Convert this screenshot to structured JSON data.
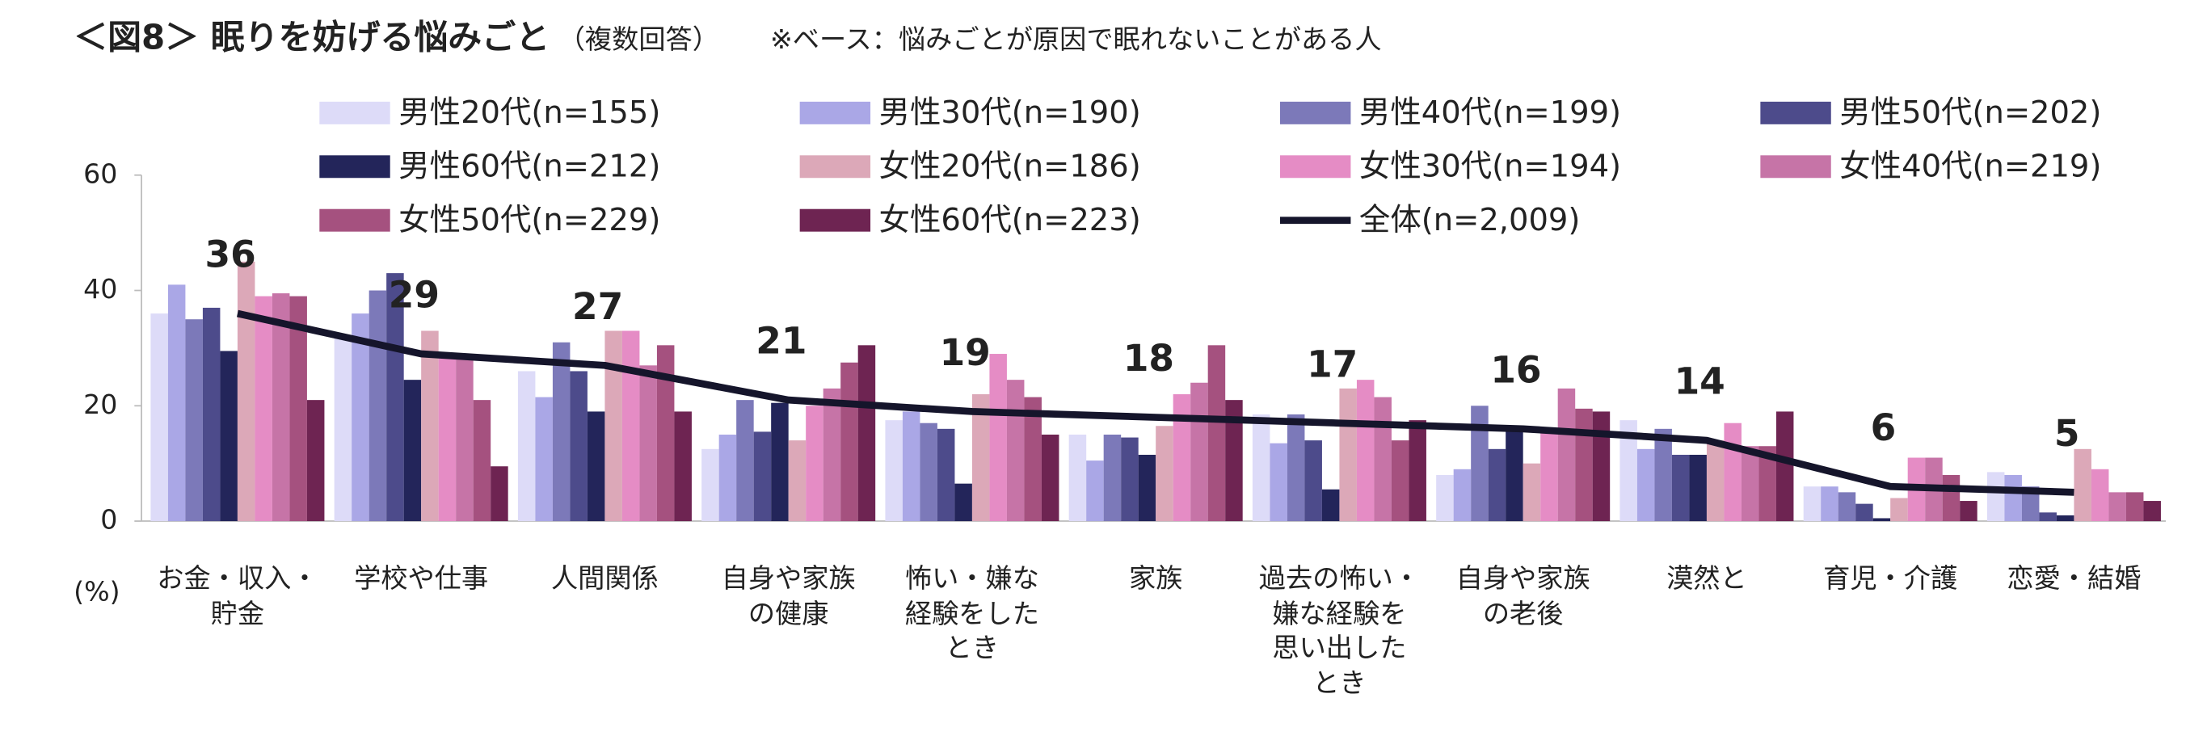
{
  "chart_data": {
    "type": "bar",
    "title": "＜図8＞ 眠りを妨げる悩みごと",
    "subtitle": "（複数回答）",
    "note": "※ベース：悩みごとが原因で眠れないことがある人",
    "y_label": "(%)",
    "categories": [
      "お金・収入・\n貯金",
      "学校や仕事",
      "人間関係",
      "自身や家族\nの健康",
      "怖い・嫌な\n経験をした\nとき",
      "家族",
      "過去の怖い・\n嫌な経験を\n思い出した\nとき",
      "自身や家族\nの老後",
      "漠然と",
      "育児・介護",
      "恋愛・結婚"
    ],
    "ylim": [
      0,
      60
    ],
    "yticks": [
      0,
      20,
      40,
      60
    ],
    "series": [
      {
        "name": "男性20代(n=155)",
        "color": "#dddbf8",
        "values": [
          36,
          32,
          26,
          12.5,
          17.5,
          15,
          18.5,
          8,
          17.5,
          6,
          8.5
        ]
      },
      {
        "name": "男性30代(n=190)",
        "color": "#aaa7e6",
        "values": [
          41,
          36,
          21.5,
          15,
          19,
          10.5,
          13.5,
          9,
          12.5,
          6,
          8
        ]
      },
      {
        "name": "男性40代(n=199)",
        "color": "#7c79b9",
        "values": [
          35,
          40,
          31,
          21,
          17,
          15,
          18.5,
          20,
          16,
          5,
          6
        ]
      },
      {
        "name": "男性50代(n=202)",
        "color": "#4d4b8b",
        "values": [
          37,
          43,
          26,
          15.5,
          16,
          14.5,
          14,
          12.5,
          11.5,
          3,
          1.5
        ]
      },
      {
        "name": "男性60代(n=212)",
        "color": "#23255a",
        "values": [
          29.5,
          24.5,
          19,
          20.5,
          6.5,
          11.5,
          5.5,
          15.5,
          11.5,
          0.5,
          1
        ]
      },
      {
        "name": "女性20代(n=186)",
        "color": "#dca8b8",
        "values": [
          45,
          33,
          33,
          14,
          22,
          16.5,
          23,
          10,
          14,
          4,
          12.5
        ]
      },
      {
        "name": "女性30代(n=194)",
        "color": "#e58cc5",
        "values": [
          39,
          29,
          33,
          20,
          29,
          22,
          24.5,
          16,
          17,
          11,
          9
        ]
      },
      {
        "name": "女性40代(n=219)",
        "color": "#c674a7",
        "values": [
          39.5,
          29,
          27,
          23,
          24.5,
          24,
          21.5,
          23,
          13,
          11,
          5
        ]
      },
      {
        "name": "女性50代(n=229)",
        "color": "#a5517f",
        "values": [
          39,
          21,
          30.5,
          27.5,
          21.5,
          30.5,
          14,
          19.5,
          13,
          8,
          5
        ]
      },
      {
        "name": "女性60代(n=223)",
        "color": "#6e2452",
        "values": [
          21,
          9.5,
          19,
          30.5,
          15,
          21,
          17.5,
          19,
          19,
          3.5,
          3.5
        ]
      },
      {
        "name": "全体(n=2,009)",
        "type": "line",
        "color": "#15152b",
        "values": [
          36,
          29,
          27,
          21,
          19,
          18,
          17,
          16,
          14,
          6,
          5
        ]
      }
    ]
  }
}
